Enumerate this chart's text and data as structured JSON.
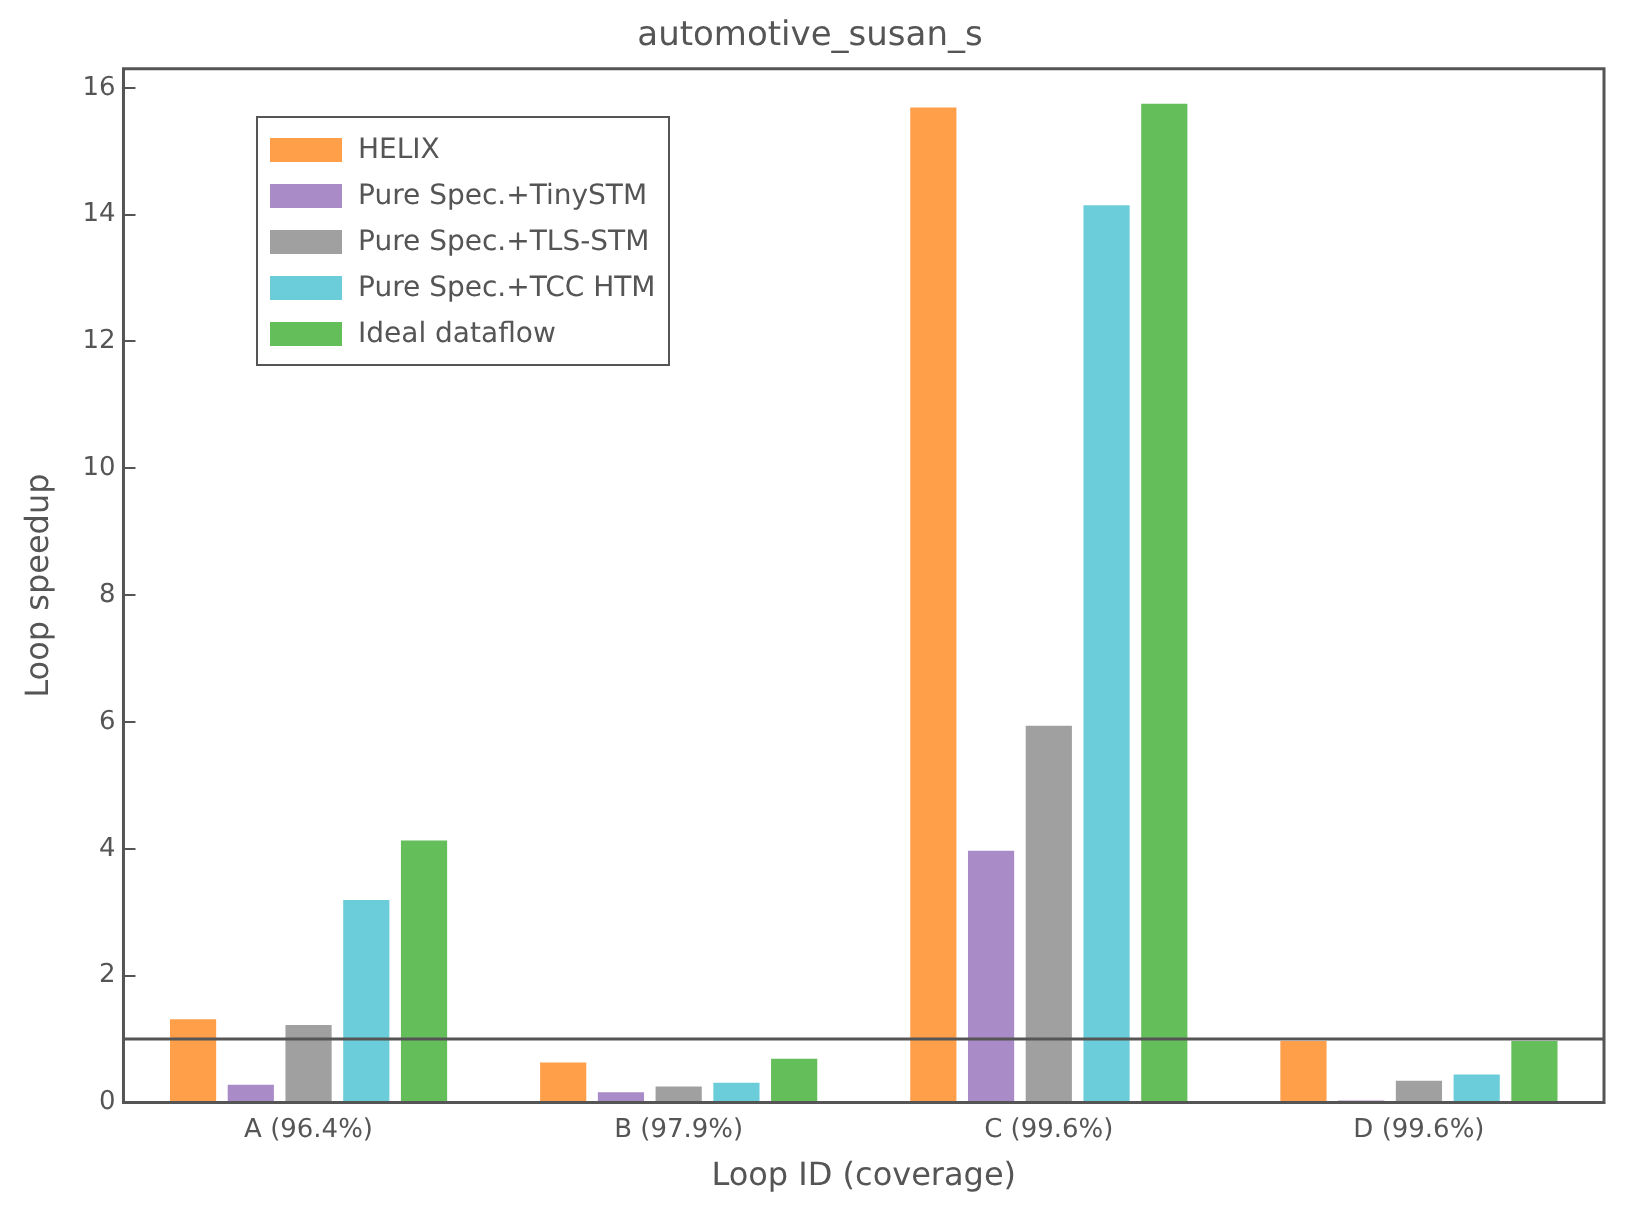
{
  "chart_data": {
    "type": "bar",
    "title": "automotive_susan_s",
    "xlabel": "Loop ID (coverage)",
    "ylabel": "Loop speedup",
    "categories": [
      "A (96.4%)",
      "B (97.9%)",
      "C (99.6%)",
      "D (99.6%)"
    ],
    "series": [
      {
        "name": "HELIX",
        "color": "#ff9f4a",
        "values": [
          1.31,
          0.63,
          15.69,
          0.97
        ]
      },
      {
        "name": "Pure Spec.+TinySTM",
        "color": "#a98bc8",
        "values": [
          0.28,
          0.16,
          3.97,
          0.03
        ]
      },
      {
        "name": "Pure Spec.+TLS-STM",
        "color": "#a0a0a0",
        "values": [
          1.22,
          0.25,
          5.94,
          0.34
        ]
      },
      {
        "name": "Pure Spec.+TCC HTM",
        "color": "#6bcdd9",
        "values": [
          3.19,
          0.31,
          14.15,
          0.44
        ]
      },
      {
        "name": "Ideal dataflow",
        "color": "#64be5a",
        "values": [
          4.13,
          0.69,
          15.75,
          0.97
        ]
      }
    ],
    "ylim": [
      0,
      16.3
    ],
    "yticks": [
      0,
      2,
      4,
      6,
      8,
      10,
      12,
      14,
      16
    ],
    "grid": false,
    "legend": "top left",
    "ref_lines": [
      {
        "axis": "y",
        "value": 1,
        "color": "#555555"
      }
    ]
  }
}
